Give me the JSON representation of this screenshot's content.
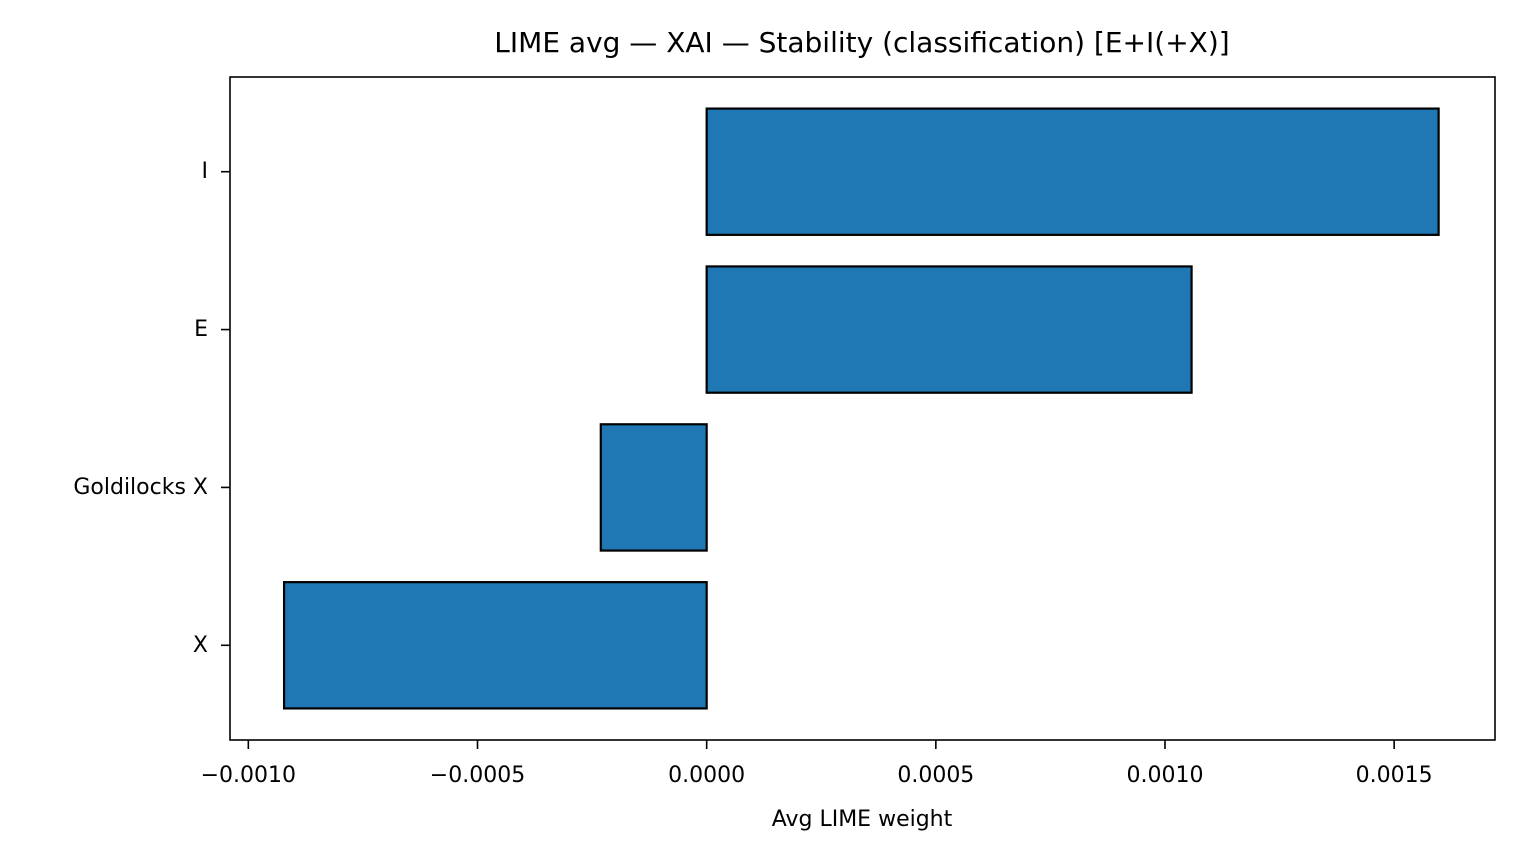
{
  "chart_data": {
    "type": "bar",
    "orientation": "horizontal",
    "title": "LIME avg — XAI — Stability (classification) [E+I(+X)]",
    "xlabel": "Avg LIME weight",
    "ylabel": "",
    "categories": [
      "I",
      "E",
      "Goldilocks X",
      "X"
    ],
    "values": [
      0.001597,
      0.001058,
      -0.000231,
      -0.000922
    ],
    "xlim": [
      -0.00104,
      0.00172
    ],
    "xticks": [
      -0.001,
      -0.0005,
      0.0,
      0.0005,
      0.001,
      0.0015
    ],
    "xtick_labels": [
      "−0.0010",
      "−0.0005",
      "0.0000",
      "0.0005",
      "0.0010",
      "0.0015"
    ],
    "bar_color": "#1f77b4",
    "edge_color": "#000000",
    "grid": false,
    "legend": "none"
  }
}
